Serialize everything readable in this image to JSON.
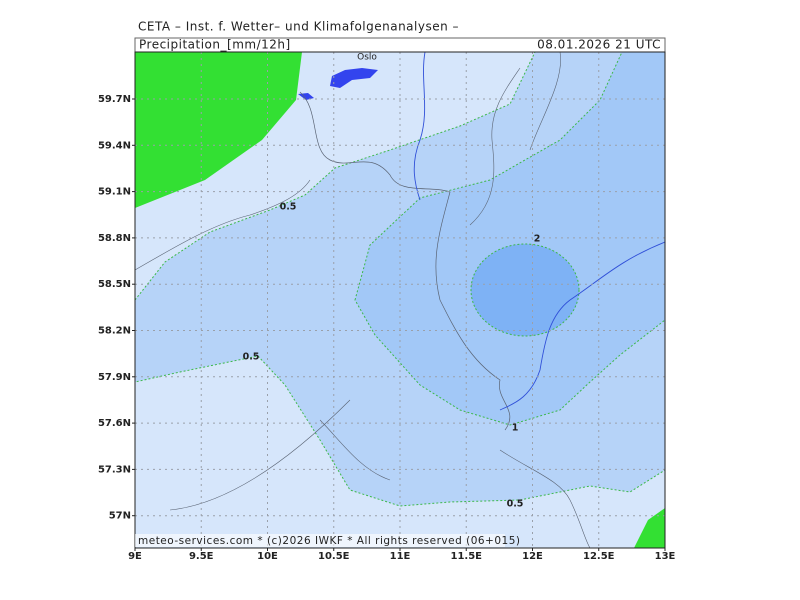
{
  "header": {
    "title": "CETA – Inst. f. Wetter– und Klimafolgenanalysen –",
    "parameter": "Precipitation_[mm/12h]",
    "valid": "08.01.2026 21 UTC"
  },
  "map": {
    "place_labels": [
      "Oslo"
    ],
    "lat_labels": [
      "59.7N",
      "59.4N",
      "59.1N",
      "58.8N",
      "58.5N",
      "58.2N",
      "57.9N",
      "57.6N",
      "57.3N",
      "57N"
    ],
    "lon_labels": [
      "9E",
      "9.5E",
      "10E",
      "10.5E",
      "11E",
      "11.5E",
      "12E",
      "12.5E",
      "13E"
    ],
    "contour_labels": [
      "0.5",
      "0.5",
      "0.5",
      "2",
      "1"
    ]
  },
  "footer": "meteo-services.com * (c)2026 IWKF * All rights reserved (06+015)"
}
